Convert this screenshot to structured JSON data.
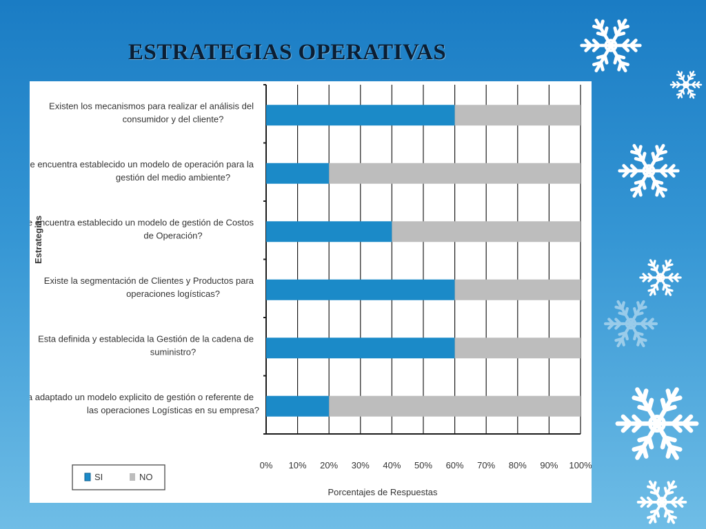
{
  "slide": {
    "title": "ESTRATEGIAS OPERATIVAS"
  },
  "colors": {
    "si": "#1b8ac8",
    "no": "#bdbdbd",
    "grid": "#1a1a1a",
    "text": "#333333"
  },
  "chart_data": {
    "type": "bar",
    "orientation": "horizontal",
    "stacked": true,
    "title": "",
    "ylabel": "Estrategias",
    "xlabel": "Porcentajes de Respuestas",
    "xlim": [
      0,
      100
    ],
    "x_ticks": [
      "0%",
      "10%",
      "20%",
      "30%",
      "40%",
      "50%",
      "60%",
      "70%",
      "80%",
      "90%",
      "100%"
    ],
    "grid": true,
    "legend_position": "bottom-left",
    "categories": [
      [
        "Existen los mecanismos para realizar el análisis del",
        "consumidor y del cliente?"
      ],
      [
        "Se encuentra establecido un modelo de operación para la",
        "gestión del medio ambiente?"
      ],
      [
        "Se encuentra establecido un modelo de gestión de Costos",
        "de Operación?"
      ],
      [
        "Existe la segmentación de Clientes y Productos para",
        "operaciones logísticas?"
      ],
      [
        "Esta definida y establecida la Gestión de la cadena de",
        "suministro?"
      ],
      [
        "Ha adaptado un modelo explicito de gestión o referente de",
        "las operaciones Logísticas en su empresa?"
      ]
    ],
    "series": [
      {
        "name": "SI",
        "color": "#1b8ac8",
        "values": [
          60,
          20,
          40,
          60,
          60,
          20
        ]
      },
      {
        "name": "NO",
        "color": "#bdbdbd",
        "values": [
          40,
          80,
          60,
          40,
          40,
          80
        ]
      }
    ]
  }
}
